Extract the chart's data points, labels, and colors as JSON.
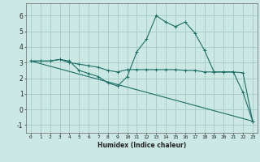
{
  "xlabel": "Humidex (Indice chaleur)",
  "background_color": "#cce8e4",
  "grid_color": "#a8cfc8",
  "line_color": "#1a6e64",
  "xlim": [
    -0.5,
    23.5
  ],
  "ylim": [
    -1.5,
    6.8
  ],
  "ytick_values": [
    -1,
    0,
    1,
    2,
    3,
    4,
    5,
    6
  ],
  "line1_x": [
    0,
    1,
    2,
    3,
    4,
    5,
    6,
    7,
    8,
    9,
    10,
    11,
    12,
    13,
    14,
    15,
    16,
    17,
    18,
    19,
    20,
    21,
    22,
    23
  ],
  "line1_y": [
    3.1,
    3.1,
    3.1,
    3.2,
    3.1,
    2.5,
    2.3,
    2.1,
    1.7,
    1.5,
    2.1,
    3.7,
    4.5,
    6.0,
    5.6,
    5.3,
    5.6,
    4.9,
    3.8,
    2.4,
    2.4,
    2.4,
    1.1,
    -0.75
  ],
  "line2_x": [
    0,
    1,
    2,
    3,
    4,
    5,
    6,
    7,
    8,
    9,
    10,
    11,
    12,
    13,
    14,
    15,
    16,
    17,
    18,
    19,
    20,
    21,
    22,
    23
  ],
  "line2_y": [
    3.1,
    3.1,
    3.1,
    3.2,
    3.0,
    2.9,
    2.8,
    2.7,
    2.5,
    2.4,
    2.55,
    2.55,
    2.55,
    2.55,
    2.55,
    2.55,
    2.5,
    2.5,
    2.4,
    2.4,
    2.4,
    2.4,
    2.35,
    -0.75
  ],
  "line3_x": [
    0,
    23
  ],
  "line3_y": [
    3.1,
    -0.75
  ]
}
